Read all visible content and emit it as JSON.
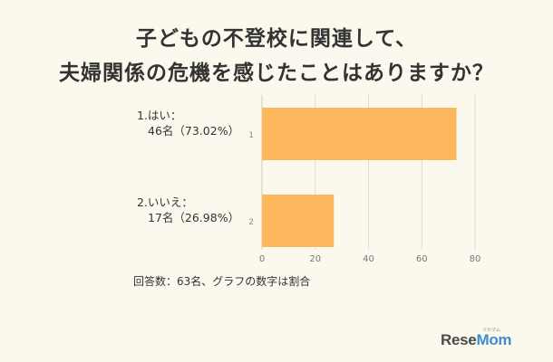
{
  "title_lines": [
    "子どもの不登校に関連して、",
    "夫婦関係の危機を感じたことはありますか？"
  ],
  "chart_data": {
    "type": "bar",
    "orientation": "horizontal",
    "categories": [
      "1",
      "2"
    ],
    "category_labels": [
      [
        "1.はい：",
        "46名（73.02%）"
      ],
      [
        "2.いいえ：",
        "17名（26.98%）"
      ]
    ],
    "values": [
      73.02,
      26.98
    ],
    "counts": [
      46,
      17
    ],
    "xlim": [
      0,
      80
    ],
    "xticks": [
      "0",
      "20",
      "40",
      "60",
      "80"
    ],
    "grid": "vertical",
    "bar_color": "#fcb65c",
    "gridline_color": "#dedad0"
  },
  "footnote": "回答数：63名、グラフの数字は割合",
  "logo": {
    "text_a": "Rese",
    "text_b": "Mom",
    "sub": "リセマム"
  }
}
